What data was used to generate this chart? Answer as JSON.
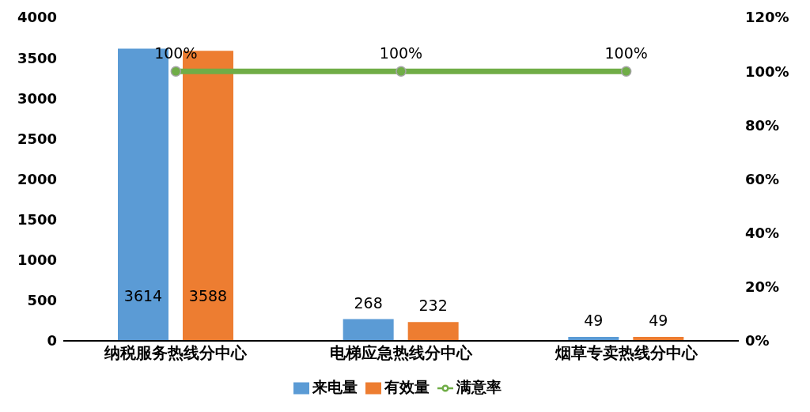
{
  "chart_data": {
    "type": "bar",
    "categories": [
      "纳税服务热线分中心",
      "电梯应急热线分中心",
      "烟草专卖热线分中心"
    ],
    "series": [
      {
        "name": "来电量",
        "color": "#5b9bd5",
        "values": [
          3614,
          268,
          49
        ],
        "value_labels": [
          "3614",
          "268",
          "49"
        ]
      },
      {
        "name": "有效量",
        "color": "#ed7d31",
        "values": [
          3588,
          232,
          49
        ],
        "value_labels": [
          "3588",
          "232",
          "49"
        ]
      },
      {
        "name": "满意率",
        "type": "line",
        "axis": "y2",
        "color": "#70ad47",
        "values": [
          100,
          100,
          100
        ],
        "value_labels": [
          "100%",
          "100%",
          "100%"
        ]
      }
    ],
    "ylim": [
      0,
      4000
    ],
    "yticks": [
      0,
      500,
      1000,
      1500,
      2000,
      2500,
      3000,
      3500,
      4000
    ],
    "y2lim": [
      0,
      120
    ],
    "y2ticks": [
      {
        "value": 0,
        "label": "0%"
      },
      {
        "value": 20,
        "label": "20%"
      },
      {
        "value": 40,
        "label": "40%"
      },
      {
        "value": 60,
        "label": "60%"
      },
      {
        "value": 80,
        "label": "80%"
      },
      {
        "value": 100,
        "label": "100%"
      },
      {
        "value": 120,
        "label": "120%"
      }
    ],
    "marker": "circle",
    "legend": "bottom"
  }
}
